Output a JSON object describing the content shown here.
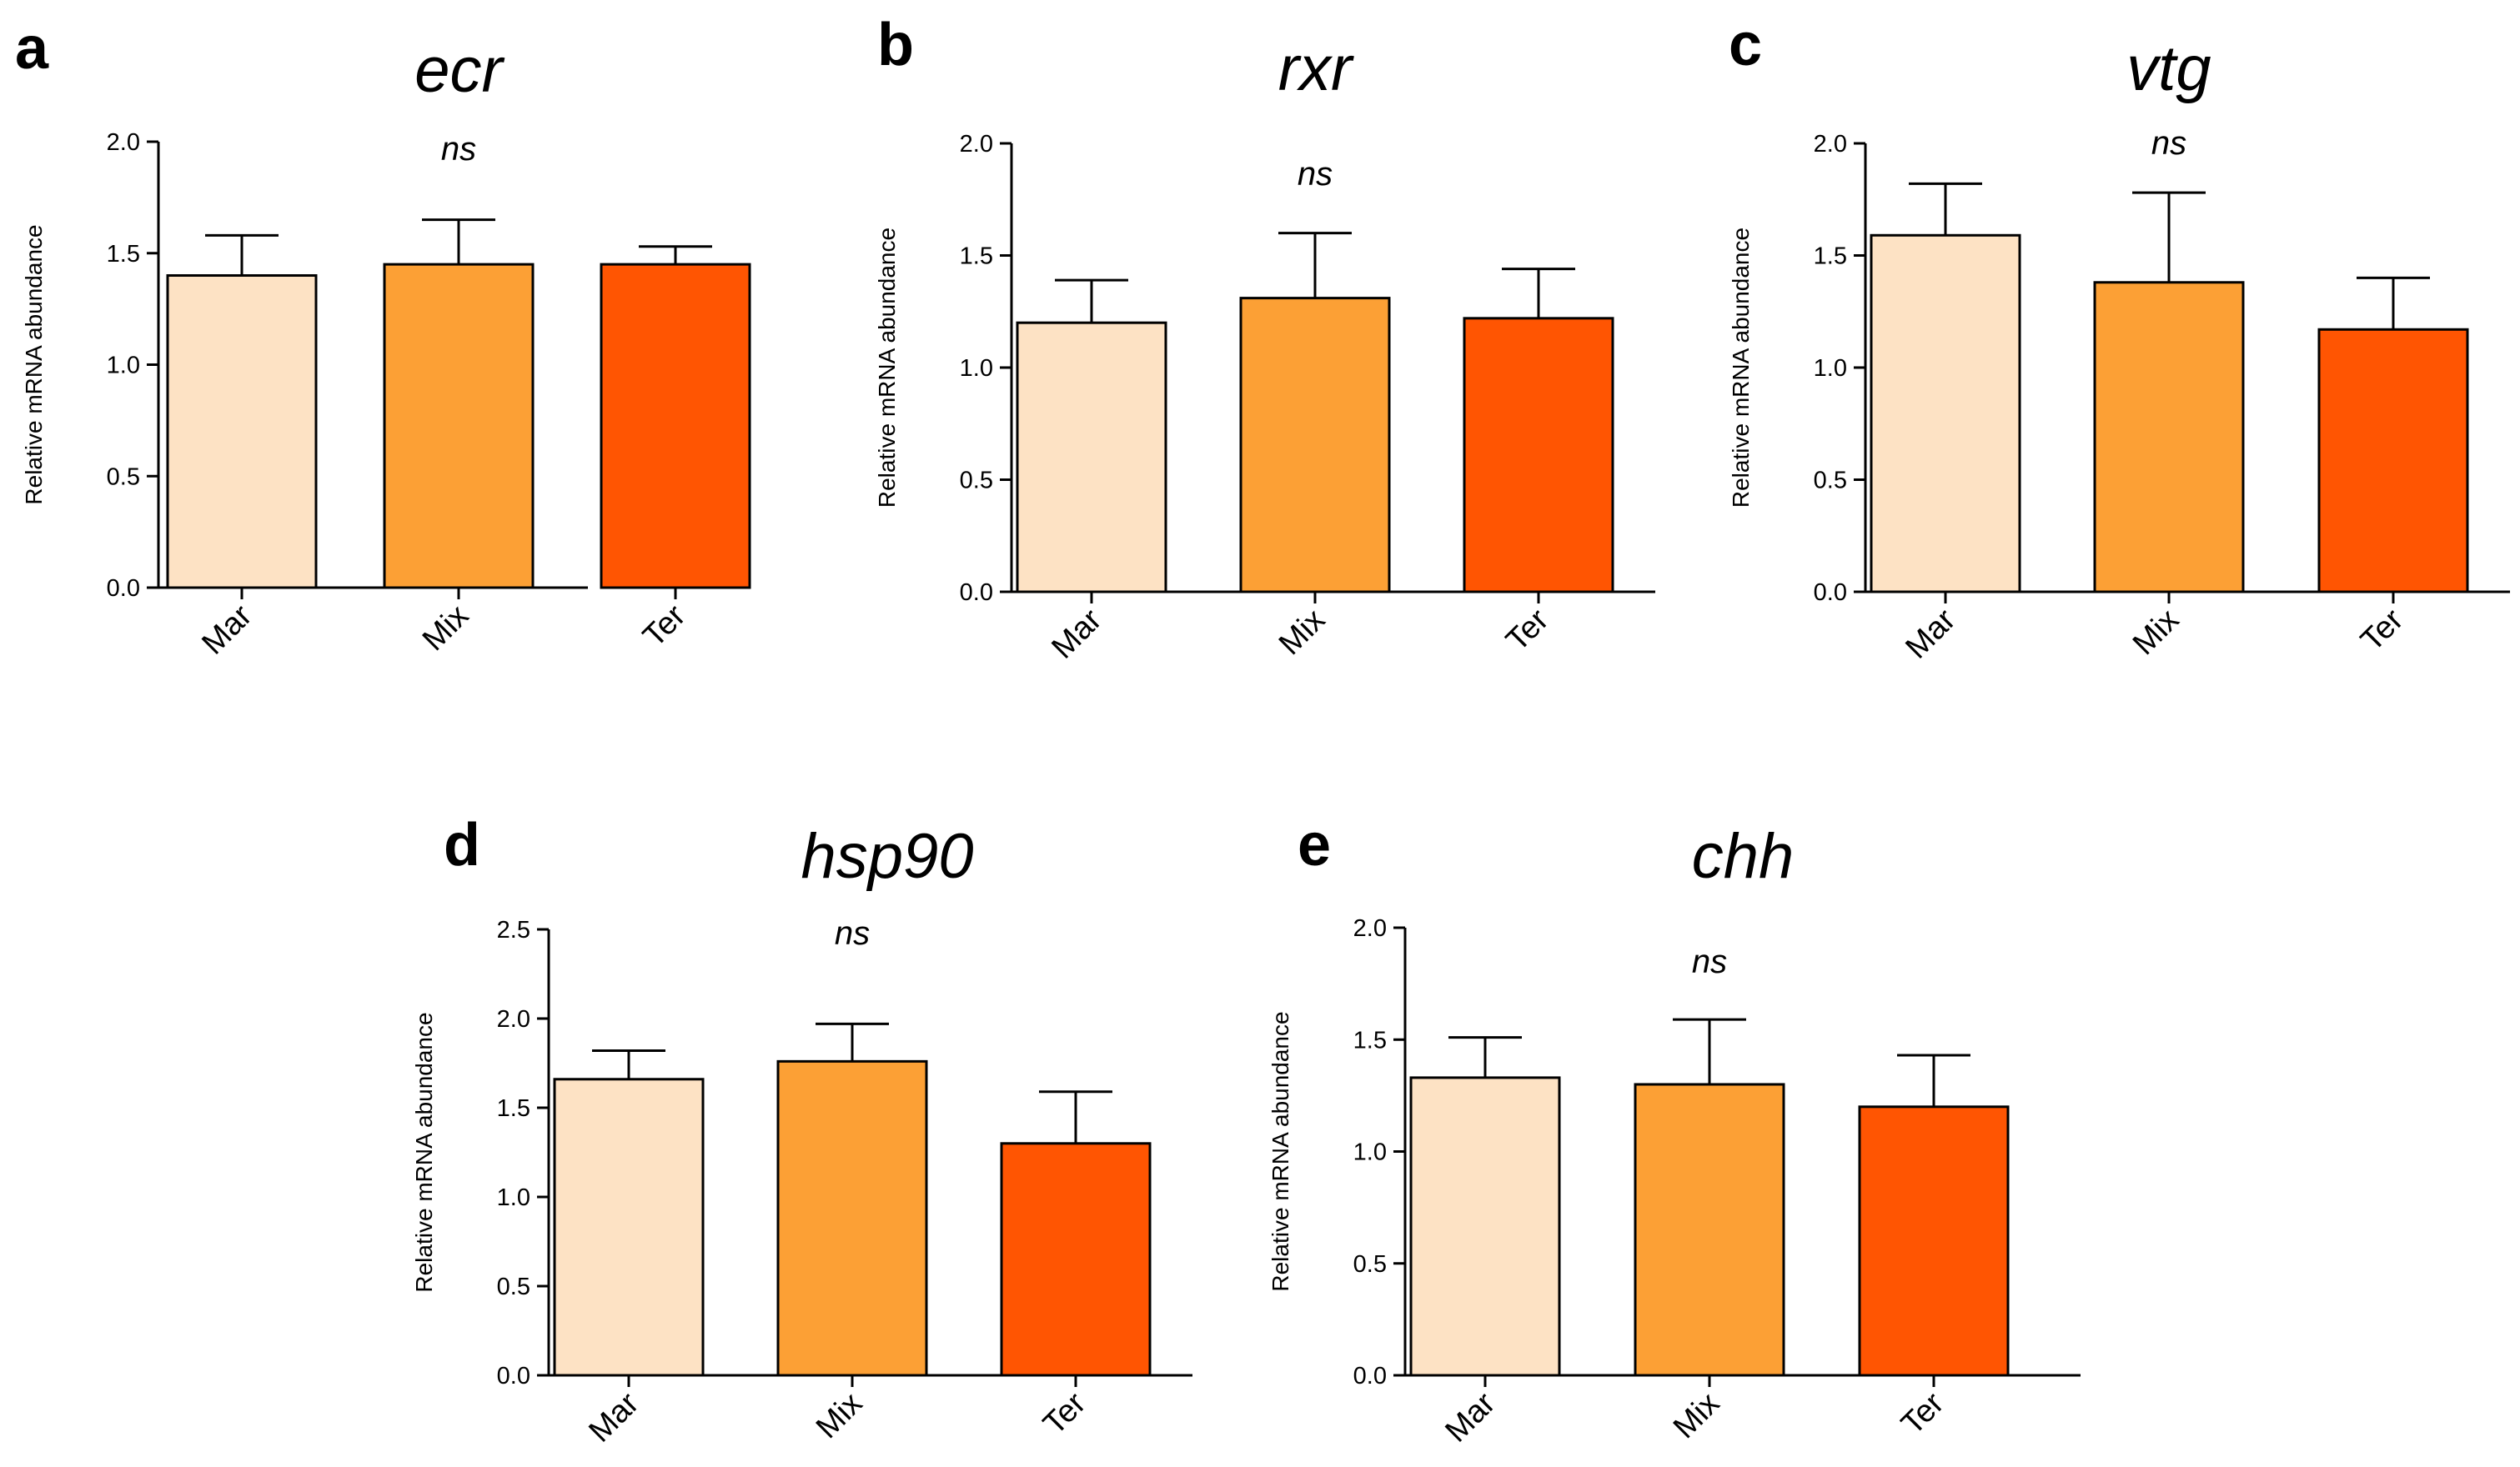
{
  "colors": {
    "Mar": "#FDE2C4",
    "Mix": "#FCA035",
    "Ter": "#FF5502",
    "axis": "#000000"
  },
  "chart_data": [
    {
      "type": "bar",
      "panel": "a",
      "title": "ecr",
      "ylabel": "Relative mRNA abundance",
      "xlabel": "",
      "categories": [
        "Mar",
        "Mix",
        "Ter"
      ],
      "values": [
        1.4,
        1.45,
        1.45
      ],
      "errors": [
        0.18,
        0.2,
        0.08
      ],
      "ylim": [
        0,
        2.0
      ],
      "yticks": [
        "0.0",
        "0.5",
        "1.0",
        "1.5",
        "2.0"
      ],
      "annotation": "ns",
      "grid": false
    },
    {
      "type": "bar",
      "panel": "b",
      "title": "rxr",
      "ylabel": "Relative mRNA abundance",
      "xlabel": "",
      "categories": [
        "Mar",
        "Mix",
        "Ter"
      ],
      "values": [
        1.2,
        1.31,
        1.22
      ],
      "errors": [
        0.19,
        0.29,
        0.22
      ],
      "ylim": [
        0,
        2.0
      ],
      "yticks": [
        "0.0",
        "0.5",
        "1.0",
        "1.5",
        "2.0"
      ],
      "annotation": "ns",
      "grid": false
    },
    {
      "type": "bar",
      "panel": "c",
      "title": "vtg",
      "ylabel": "Relative mRNA abundance",
      "xlabel": "",
      "categories": [
        "Mar",
        "Mix",
        "Ter"
      ],
      "values": [
        1.59,
        1.38,
        1.17
      ],
      "errors": [
        0.23,
        0.4,
        0.23
      ],
      "ylim": [
        0,
        2.0
      ],
      "yticks": [
        "0.0",
        "0.5",
        "1.0",
        "1.5",
        "2.0"
      ],
      "annotation": "ns",
      "grid": false
    },
    {
      "type": "bar",
      "panel": "d",
      "title": "hsp90",
      "ylabel": "Relative mRNA abundance",
      "xlabel": "",
      "categories": [
        "Mar",
        "Mix",
        "Ter"
      ],
      "values": [
        1.66,
        1.76,
        1.3
      ],
      "errors": [
        0.16,
        0.21,
        0.29
      ],
      "ylim": [
        0,
        2.5
      ],
      "yticks": [
        "0.0",
        "0.5",
        "1.0",
        "1.5",
        "2.0",
        "2.5"
      ],
      "annotation": "ns",
      "grid": false
    },
    {
      "type": "bar",
      "panel": "e",
      "title": "chh",
      "ylabel": "Relative mRNA abundance",
      "xlabel": "",
      "categories": [
        "Mar",
        "Mix",
        "Ter"
      ],
      "values": [
        1.33,
        1.3,
        1.2
      ],
      "errors": [
        0.18,
        0.29,
        0.23
      ],
      "ylim": [
        0,
        2.0
      ],
      "yticks": [
        "0.0",
        "0.5",
        "1.0",
        "1.5",
        "2.0"
      ],
      "annotation": "ns",
      "grid": false
    }
  ]
}
